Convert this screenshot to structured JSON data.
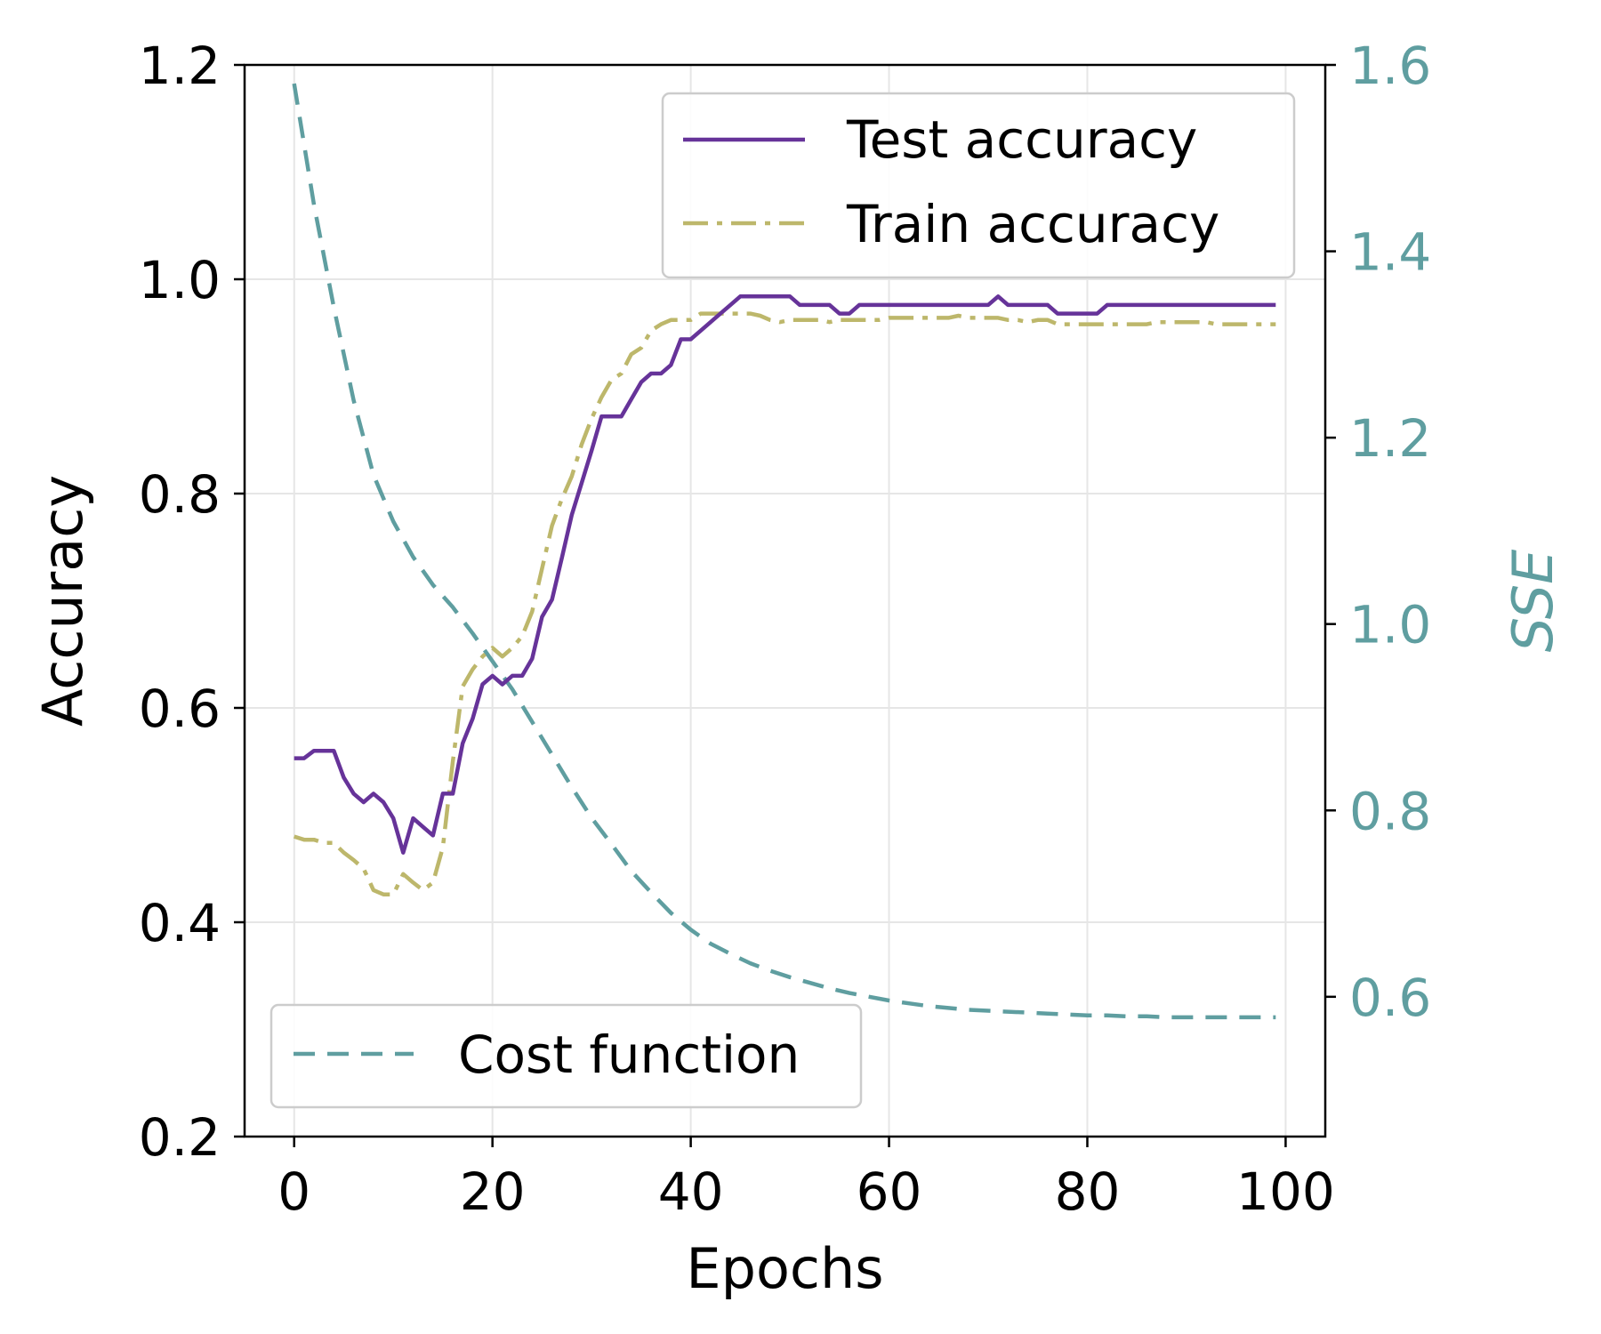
{
  "chart_data": {
    "type": "line",
    "xlabel": "Epochs",
    "ylabel": "Accuracy",
    "y2label": "SSE",
    "xlim": [
      -5,
      104
    ],
    "ylim": [
      0.2,
      1.2
    ],
    "y2lim": [
      0.45,
      1.6
    ],
    "xticks": [
      "0",
      "20",
      "40",
      "60",
      "80",
      "100"
    ],
    "yticks": [
      "0.2",
      "0.4",
      "0.6",
      "0.8",
      "1.0",
      "1.2"
    ],
    "y2ticks": [
      "0.6",
      "0.8",
      "1.0",
      "1.2",
      "1.4",
      "1.6"
    ],
    "grid": true,
    "colors": {
      "test": "#663399",
      "train": "#bdb76b",
      "cost": "#5f9ea0",
      "y2axis": "#5f9ea0"
    },
    "legend_accuracy": {
      "placement": "upper-right",
      "entries": [
        "Test accuracy",
        "Train accuracy"
      ]
    },
    "legend_cost": {
      "placement": "lower-left",
      "entries": [
        "Cost function"
      ]
    },
    "series": [
      {
        "name": "Test accuracy",
        "axis": "left",
        "style": "solid",
        "x": [
          0,
          1,
          2,
          3,
          4,
          5,
          6,
          7,
          8,
          9,
          10,
          11,
          12,
          13,
          14,
          15,
          16,
          17,
          18,
          19,
          20,
          21,
          22,
          23,
          24,
          25,
          26,
          27,
          28,
          29,
          30,
          31,
          32,
          33,
          34,
          35,
          36,
          37,
          38,
          39,
          40,
          41,
          42,
          43,
          44,
          45,
          46,
          47,
          48,
          49,
          50,
          51,
          52,
          53,
          54,
          55,
          56,
          57,
          58,
          59,
          60,
          61,
          62,
          63,
          64,
          65,
          66,
          67,
          68,
          69,
          70,
          71,
          72,
          73,
          74,
          75,
          76,
          77,
          78,
          79,
          80,
          81,
          82,
          83,
          84,
          85,
          86,
          87,
          88,
          89,
          90,
          91,
          92,
          93,
          94,
          95,
          96,
          97,
          98,
          99
        ],
        "values": [
          0.553,
          0.553,
          0.56,
          0.56,
          0.56,
          0.535,
          0.52,
          0.512,
          0.52,
          0.512,
          0.497,
          0.465,
          0.497,
          0.489,
          0.481,
          0.52,
          0.52,
          0.567,
          0.59,
          0.622,
          0.63,
          0.622,
          0.63,
          0.63,
          0.646,
          0.685,
          0.701,
          0.74,
          0.78,
          0.81,
          0.84,
          0.872,
          0.872,
          0.872,
          0.888,
          0.904,
          0.912,
          0.912,
          0.92,
          0.944,
          0.944,
          0.952,
          0.96,
          0.968,
          0.976,
          0.984,
          0.984,
          0.984,
          0.984,
          0.984,
          0.984,
          0.976,
          0.976,
          0.976,
          0.976,
          0.968,
          0.968,
          0.976,
          0.976,
          0.976,
          0.976,
          0.976,
          0.976,
          0.976,
          0.976,
          0.976,
          0.976,
          0.976,
          0.976,
          0.976,
          0.976,
          0.984,
          0.976,
          0.976,
          0.976,
          0.976,
          0.976,
          0.968,
          0.968,
          0.968,
          0.968,
          0.968,
          0.976,
          0.976,
          0.976,
          0.976,
          0.976,
          0.976,
          0.976,
          0.976,
          0.976,
          0.976,
          0.976,
          0.976,
          0.976,
          0.976,
          0.976,
          0.976,
          0.976,
          0.976
        ]
      },
      {
        "name": "Train accuracy",
        "axis": "left",
        "style": "dashdot",
        "x": [
          0,
          1,
          2,
          3,
          4,
          5,
          6,
          7,
          8,
          9,
          10,
          11,
          12,
          13,
          14,
          15,
          16,
          17,
          18,
          19,
          20,
          21,
          22,
          23,
          24,
          25,
          26,
          27,
          28,
          29,
          30,
          31,
          32,
          33,
          34,
          35,
          36,
          37,
          38,
          39,
          40,
          41,
          42,
          43,
          44,
          45,
          46,
          47,
          48,
          49,
          50,
          51,
          52,
          53,
          54,
          55,
          56,
          57,
          58,
          59,
          60,
          61,
          62,
          63,
          64,
          65,
          66,
          67,
          68,
          69,
          70,
          71,
          72,
          73,
          74,
          75,
          76,
          77,
          78,
          79,
          80,
          81,
          82,
          83,
          84,
          85,
          86,
          87,
          88,
          89,
          90,
          91,
          92,
          93,
          94,
          95,
          96,
          97,
          98,
          99
        ],
        "values": [
          0.48,
          0.477,
          0.477,
          0.474,
          0.474,
          0.465,
          0.458,
          0.45,
          0.43,
          0.426,
          0.426,
          0.445,
          0.437,
          0.43,
          0.437,
          0.47,
          0.55,
          0.62,
          0.636,
          0.648,
          0.656,
          0.648,
          0.656,
          0.667,
          0.69,
          0.73,
          0.77,
          0.795,
          0.816,
          0.846,
          0.87,
          0.89,
          0.906,
          0.912,
          0.93,
          0.936,
          0.952,
          0.958,
          0.962,
          0.962,
          0.962,
          0.968,
          0.968,
          0.968,
          0.968,
          0.968,
          0.968,
          0.966,
          0.962,
          0.96,
          0.962,
          0.962,
          0.962,
          0.962,
          0.96,
          0.962,
          0.962,
          0.962,
          0.962,
          0.962,
          0.964,
          0.964,
          0.964,
          0.964,
          0.964,
          0.964,
          0.964,
          0.966,
          0.964,
          0.964,
          0.964,
          0.964,
          0.962,
          0.962,
          0.96,
          0.962,
          0.962,
          0.958,
          0.958,
          0.958,
          0.958,
          0.958,
          0.958,
          0.958,
          0.958,
          0.958,
          0.958,
          0.96,
          0.96,
          0.96,
          0.96,
          0.96,
          0.96,
          0.958,
          0.958,
          0.958,
          0.958,
          0.958,
          0.958,
          0.958
        ]
      },
      {
        "name": "Cost function",
        "axis": "right",
        "style": "dashed",
        "x": [
          0,
          2,
          4,
          6,
          8,
          10,
          12,
          14,
          16,
          18,
          20,
          22,
          24,
          26,
          28,
          30,
          32,
          34,
          36,
          38,
          40,
          42,
          44,
          46,
          48,
          50,
          52,
          54,
          56,
          58,
          60,
          62,
          64,
          66,
          68,
          70,
          72,
          74,
          76,
          78,
          80,
          82,
          84,
          86,
          88,
          90,
          92,
          94,
          96,
          98,
          99
        ],
        "values": [
          1.58,
          1.45,
          1.34,
          1.24,
          1.16,
          1.11,
          1.072,
          1.042,
          1.018,
          0.99,
          0.96,
          0.93,
          0.895,
          0.86,
          0.825,
          0.792,
          0.764,
          0.735,
          0.712,
          0.69,
          0.672,
          0.657,
          0.646,
          0.636,
          0.628,
          0.621,
          0.615,
          0.609,
          0.604,
          0.6,
          0.596,
          0.593,
          0.59,
          0.588,
          0.586,
          0.585,
          0.584,
          0.583,
          0.582,
          0.581,
          0.58,
          0.58,
          0.579,
          0.579,
          0.578,
          0.578,
          0.578,
          0.578,
          0.578,
          0.578,
          0.578
        ]
      }
    ]
  }
}
